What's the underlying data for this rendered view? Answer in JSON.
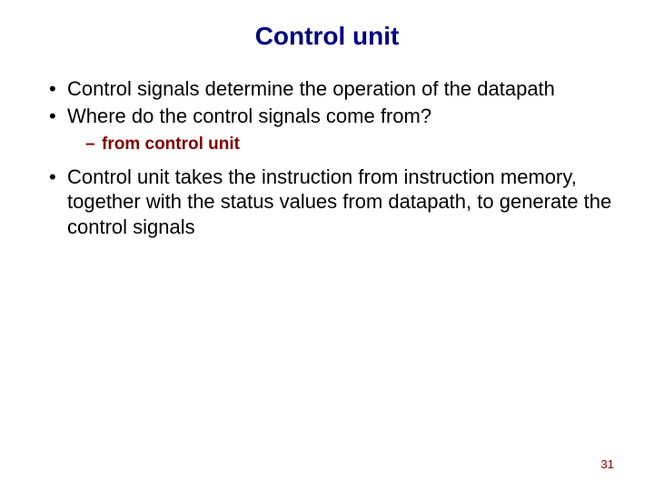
{
  "title": {
    "text": "Control unit",
    "color": "#000080",
    "fontsize": 28
  },
  "body": {
    "color": "#000000",
    "fontsize": 22,
    "lineheight": 1.25
  },
  "sub": {
    "color": "#800000",
    "fontsize": 19
  },
  "bullets": [
    "Control signals determine the operation of the datapath",
    "Where do the control signals come from?",
    "Control unit takes the instruction from instruction memory, together with the status values from datapath, to generate the control signals"
  ],
  "sub_bullets": [
    "from control unit"
  ],
  "page_number": {
    "text": "31",
    "color": "#800000",
    "fontsize": 13
  }
}
